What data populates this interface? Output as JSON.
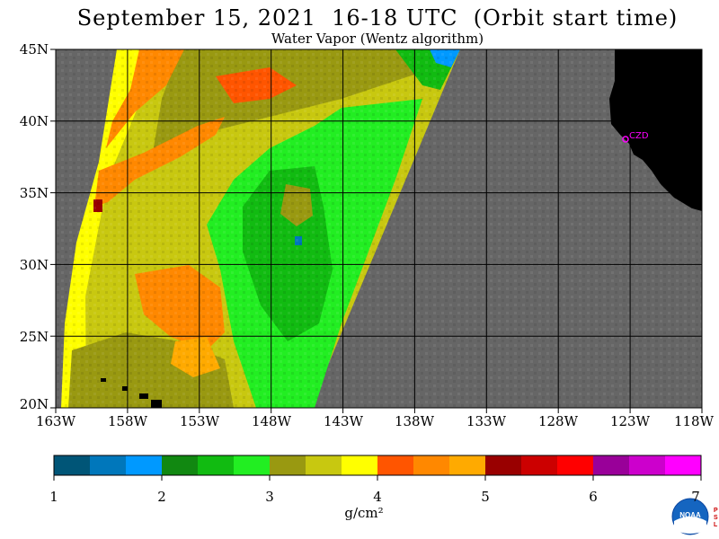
{
  "header": {
    "title": "September 15, 2021  16-18 UTC  (Orbit start time)",
    "subtitle": "Water Vapor (Wentz algorithm)"
  },
  "map": {
    "lat_labels": [
      "45N",
      "40N",
      "35N",
      "30N",
      "25N",
      "20N"
    ],
    "lon_labels": [
      "163W",
      "158W",
      "153W",
      "148W",
      "143W",
      "138W",
      "133W",
      "128W",
      "123W",
      "118W"
    ],
    "lat_range": [
      20,
      45
    ],
    "lon_range": [
      -163,
      -118
    ],
    "station_label": "CZD",
    "no_data_color": "#666666",
    "land_color": "#000000",
    "station_color": "#ff00ff"
  },
  "colorbar": {
    "tick_labels": [
      "1",
      "2",
      "3",
      "4",
      "5",
      "6",
      "7"
    ],
    "units": "g/cm²",
    "range": [
      1,
      7
    ],
    "colors": [
      "#005577",
      "#0077bb",
      "#0099ff",
      "#118811",
      "#11bb11",
      "#22ee22",
      "#999911",
      "#c8c810",
      "#ffff00",
      "#ff5500",
      "#ff8800",
      "#ffaa00",
      "#990000",
      "#cc0000",
      "#ff0000",
      "#990099",
      "#cc00cc",
      "#ff00ff"
    ]
  },
  "logo": {
    "text": "NOAA",
    "side_letters": "PSL",
    "color": "#1565c0"
  }
}
